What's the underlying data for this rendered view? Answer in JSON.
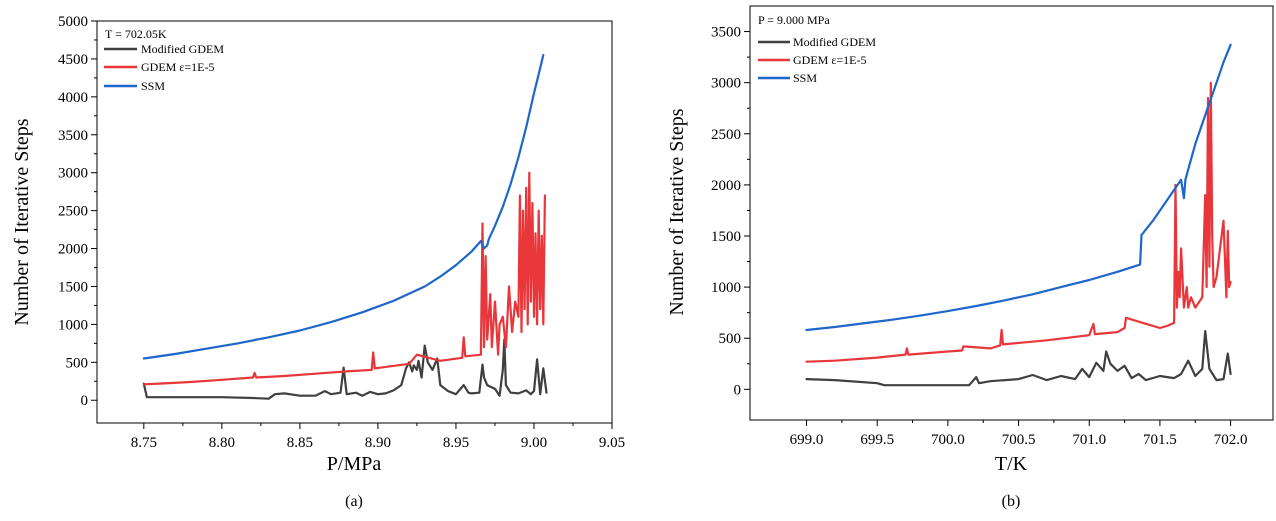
{
  "chart_data": [
    {
      "type": "line",
      "panel_label": "(a)",
      "annotation": "T = 702.05K",
      "xlabel": "P/MPa",
      "ylabel": "Number of Iterative Steps",
      "xlim": [
        8.72,
        9.05
      ],
      "ylim": [
        -300,
        5000
      ],
      "x_ticks": [
        "8.75",
        "8.80",
        "8.85",
        "8.90",
        "8.95",
        "9.00",
        "9.05"
      ],
      "y_ticks": [
        "0",
        "500",
        "1000",
        "1500",
        "2000",
        "2500",
        "3000",
        "3500",
        "4000",
        "4500",
        "5000"
      ],
      "grid": false,
      "legend_position": "top-left",
      "series": [
        {
          "name": "Modified GDEM",
          "color": "#404040",
          "x": [
            8.75,
            8.752,
            8.76,
            8.78,
            8.8,
            8.82,
            8.83,
            8.834,
            8.84,
            8.85,
            8.86,
            8.866,
            8.87,
            8.876,
            8.878,
            8.88,
            8.886,
            8.89,
            8.895,
            8.9,
            8.905,
            8.91,
            8.915,
            8.918,
            8.92,
            8.922,
            8.923,
            8.925,
            8.926,
            8.928,
            8.93,
            8.932,
            8.935,
            8.938,
            8.94,
            8.945,
            8.95,
            8.955,
            8.958,
            8.96,
            8.965,
            8.967,
            8.968,
            8.97,
            8.975,
            8.978,
            8.98,
            8.981,
            8.982,
            8.985,
            8.99,
            8.995,
            8.998,
            9.0,
            9.002,
            9.004,
            9.006,
            9.008
          ],
          "y": [
            220,
            40,
            40,
            40,
            40,
            30,
            20,
            80,
            90,
            60,
            60,
            120,
            80,
            100,
            430,
            80,
            100,
            60,
            110,
            80,
            90,
            130,
            200,
            420,
            500,
            380,
            460,
            400,
            520,
            300,
            720,
            500,
            400,
            550,
            200,
            120,
            80,
            200,
            100,
            90,
            100,
            470,
            300,
            200,
            150,
            60,
            400,
            800,
            200,
            100,
            90,
            130,
            80,
            120,
            540,
            80,
            420,
            100
          ]
        },
        {
          "name": "GDEM ε=1E-5",
          "color": "#e8363b",
          "x": [
            8.75,
            8.76,
            8.78,
            8.8,
            8.82,
            8.821,
            8.822,
            8.84,
            8.86,
            8.88,
            8.896,
            8.897,
            8.898,
            8.92,
            8.925,
            8.94,
            8.954,
            8.955,
            8.956,
            8.966,
            8.967,
            8.968,
            8.969,
            8.97,
            8.972,
            8.973,
            8.975,
            8.977,
            8.978,
            8.98,
            8.982,
            8.984,
            8.986,
            8.988,
            8.99,
            8.991,
            8.992,
            8.993,
            8.994,
            8.995,
            8.996,
            8.997,
            8.998,
            8.999,
            9.0,
            9.001,
            9.002,
            9.003,
            9.004,
            9.005,
            9.006,
            9.007
          ],
          "y": [
            210,
            220,
            240,
            270,
            300,
            360,
            300,
            320,
            350,
            380,
            400,
            630,
            420,
            480,
            600,
            520,
            560,
            830,
            580,
            600,
            2330,
            700,
            1900,
            800,
            1400,
            700,
            1300,
            600,
            1000,
            1100,
            700,
            1500,
            900,
            1300,
            1100,
            2700,
            900,
            2500,
            1200,
            2800,
            1000,
            3000,
            1300,
            2600,
            1100,
            2200,
            1000,
            2500,
            1200,
            2170,
            1000,
            2700
          ]
        },
        {
          "name": "SSM",
          "color": "#1f66c9",
          "x": [
            8.75,
            8.77,
            8.79,
            8.81,
            8.83,
            8.85,
            8.87,
            8.89,
            8.91,
            8.93,
            8.94,
            8.95,
            8.96,
            8.966,
            8.968,
            8.97,
            8.971,
            8.975,
            8.98,
            8.985,
            8.99,
            8.995,
            9.0,
            9.003,
            9.006
          ],
          "y": [
            550,
            610,
            680,
            750,
            830,
            920,
            1030,
            1160,
            1310,
            1500,
            1630,
            1780,
            1960,
            2100,
            2000,
            2040,
            2120,
            2300,
            2550,
            2850,
            3200,
            3600,
            4050,
            4300,
            4550
          ]
        }
      ]
    },
    {
      "type": "line",
      "panel_label": "(b)",
      "annotation": "P = 9.000 MPa",
      "xlabel": "T/K",
      "ylabel": "Number of Iterative Steps",
      "xlim": [
        698.6,
        702.3
      ],
      "ylim": [
        -300,
        3750
      ],
      "x_ticks": [
        "699.0",
        "699.5",
        "700.0",
        "700.5",
        "701.0",
        "701.5",
        "702.0"
      ],
      "y_ticks": [
        "0",
        "500",
        "1000",
        "1500",
        "2000",
        "2500",
        "3000",
        "3500"
      ],
      "grid": false,
      "legend_position": "top-left",
      "series": [
        {
          "name": "Modified GDEM",
          "color": "#404040",
          "x": [
            699.0,
            699.2,
            699.5,
            699.55,
            699.8,
            700.0,
            700.15,
            700.2,
            700.22,
            700.3,
            700.5,
            700.6,
            700.7,
            700.8,
            700.9,
            700.95,
            701.0,
            701.05,
            701.1,
            701.12,
            701.15,
            701.2,
            701.25,
            701.3,
            701.35,
            701.4,
            701.5,
            701.6,
            701.65,
            701.7,
            701.75,
            701.8,
            701.82,
            701.85,
            701.9,
            701.95,
            701.98,
            702.0
          ],
          "y": [
            100,
            90,
            60,
            40,
            40,
            40,
            40,
            120,
            60,
            80,
            100,
            140,
            90,
            130,
            100,
            200,
            120,
            260,
            180,
            370,
            250,
            180,
            230,
            110,
            150,
            90,
            130,
            110,
            150,
            280,
            130,
            200,
            570,
            200,
            90,
            100,
            350,
            150
          ]
        },
        {
          "name": "GDEM ε=1E-5",
          "color": "#e8363b",
          "x": [
            699.0,
            699.2,
            699.5,
            699.7,
            699.71,
            699.72,
            700.0,
            700.1,
            700.11,
            700.3,
            700.37,
            700.38,
            700.39,
            700.7,
            701.0,
            701.03,
            701.04,
            701.2,
            701.25,
            701.26,
            701.5,
            701.55,
            701.6,
            701.61,
            701.62,
            701.63,
            701.64,
            701.65,
            701.67,
            701.69,
            701.7,
            701.72,
            701.75,
            701.8,
            701.82,
            701.83,
            701.84,
            701.85,
            701.86,
            701.87,
            701.88,
            701.9,
            701.95,
            701.97,
            701.98,
            701.99,
            702.0
          ],
          "y": [
            270,
            280,
            310,
            340,
            400,
            340,
            370,
            380,
            420,
            400,
            430,
            580,
            440,
            480,
            530,
            640,
            540,
            560,
            600,
            700,
            600,
            620,
            650,
            2000,
            800,
            1150,
            900,
            1380,
            800,
            1000,
            800,
            900,
            800,
            900,
            1900,
            1000,
            2850,
            1200,
            3000,
            1500,
            1000,
            1100,
            1650,
            900,
            1550,
            1000,
            1050
          ]
        },
        {
          "name": "SSM",
          "color": "#1f66c9",
          "x": [
            699.0,
            699.2,
            699.4,
            699.6,
            699.8,
            700.0,
            700.2,
            700.4,
            700.6,
            700.8,
            701.0,
            701.2,
            701.36,
            701.37,
            701.45,
            701.55,
            701.65,
            701.67,
            701.68,
            701.7,
            701.75,
            701.8,
            701.85,
            701.9,
            701.95,
            702.0
          ],
          "y": [
            580,
            610,
            645,
            680,
            720,
            765,
            815,
            870,
            930,
            1000,
            1070,
            1150,
            1220,
            1510,
            1650,
            1850,
            2050,
            1870,
            2050,
            2150,
            2400,
            2600,
            2800,
            3000,
            3200,
            3370
          ]
        }
      ]
    }
  ]
}
